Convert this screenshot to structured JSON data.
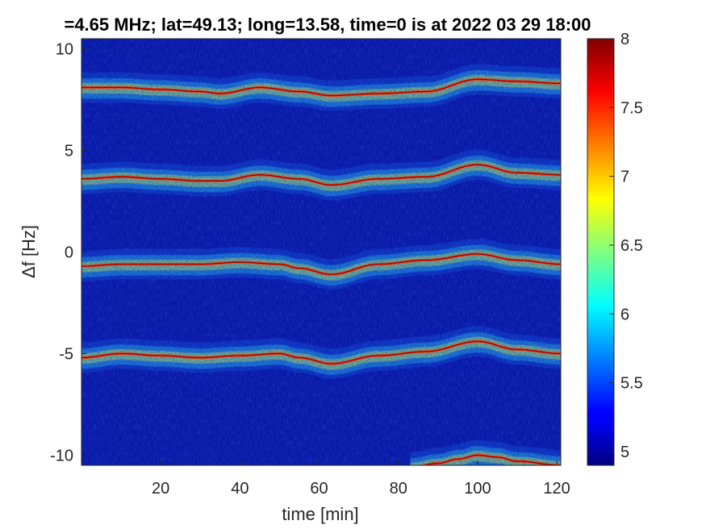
{
  "chart_data": {
    "type": "heatmap",
    "title": "=4.65 MHz;  lat=49.13; long=13.58, time=0 is at 2022 03 29 18:00",
    "xlabel": "time [min]",
    "ylabel": "Δf [Hz]",
    "xlim": [
      0,
      121
    ],
    "ylim": [
      -10.5,
      10.5
    ],
    "x_ticks": [
      20,
      40,
      60,
      80,
      100,
      120
    ],
    "y_ticks": [
      -10,
      -5,
      0,
      5,
      10
    ],
    "colorbar": {
      "colormap": "jet",
      "range": [
        4.9,
        8
      ],
      "ticks": [
        5,
        5.5,
        6,
        6.5,
        7,
        7.5,
        8
      ]
    },
    "background_color": "#0a1aa8",
    "series": [
      {
        "time_min": [
          0,
          10,
          20,
          30,
          35,
          45,
          55,
          63,
          75,
          87,
          100,
          110,
          121
        ],
        "freq_hz": [
          8.1,
          8.1,
          8.0,
          7.9,
          7.8,
          8.1,
          7.9,
          7.7,
          7.8,
          7.9,
          8.5,
          8.4,
          8.3
        ]
      },
      {
        "time_min": [
          0,
          10,
          20,
          30,
          35,
          45,
          55,
          63,
          75,
          87,
          100,
          110,
          121
        ],
        "freq_hz": [
          3.6,
          3.7,
          3.6,
          3.5,
          3.5,
          3.8,
          3.6,
          3.3,
          3.6,
          3.7,
          4.3,
          3.9,
          3.8
        ]
      },
      {
        "time_min": [
          0,
          10,
          20,
          30,
          40,
          50,
          55,
          63,
          75,
          87,
          100,
          110,
          121
        ],
        "freq_hz": [
          -0.7,
          -0.6,
          -0.6,
          -0.6,
          -0.5,
          -0.6,
          -0.8,
          -1.1,
          -0.6,
          -0.4,
          -0.1,
          -0.4,
          -0.6
        ]
      },
      {
        "time_min": [
          0,
          10,
          20,
          30,
          40,
          50,
          55,
          63,
          75,
          87,
          100,
          110,
          121
        ],
        "freq_hz": [
          -5.2,
          -5.0,
          -5.1,
          -5.2,
          -5.1,
          -5.0,
          -5.2,
          -5.5,
          -5.1,
          -4.9,
          -4.4,
          -4.8,
          -5.0
        ]
      },
      {
        "time_min": [
          83,
          90,
          95,
          100,
          105,
          110,
          121
        ],
        "freq_hz": [
          -10.6,
          -10.4,
          -10.2,
          -10.0,
          -10.1,
          -10.3,
          -10.5
        ]
      }
    ]
  }
}
